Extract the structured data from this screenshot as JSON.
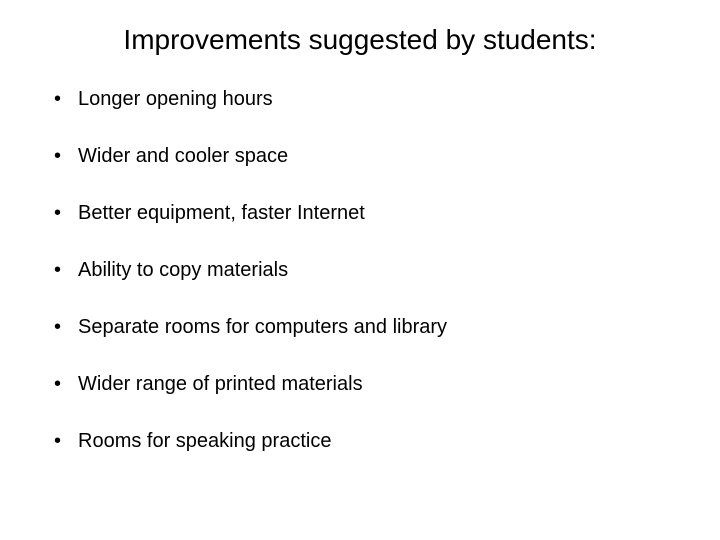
{
  "slide": {
    "title": "Improvements suggested by students:",
    "title_fontsize": 28,
    "bullets": [
      "Longer opening hours",
      "Wider and cooler space",
      "Better equipment, faster Internet",
      "Ability to copy materials",
      "Separate rooms for computers and library",
      "Wider range of printed materials",
      "Rooms for speaking practice"
    ],
    "bullet_fontsize": 20,
    "background_color": "#ffffff",
    "text_color": "#000000"
  }
}
